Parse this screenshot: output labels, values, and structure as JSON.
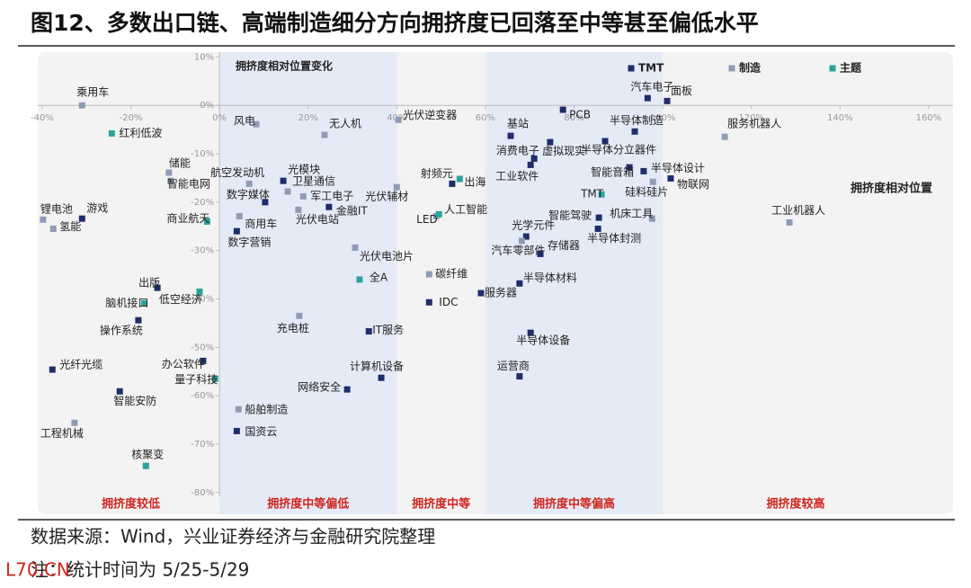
{
  "chart_data": {
    "type": "scatter",
    "title": "图12、多数出口链、高端制造细分方向拥挤度已回落至中等甚至偏低水平",
    "x_label": "拥挤度相对位置",
    "y_label": "拥挤度相对位置变化",
    "source": "数据来源：Wind，兴业证券经济与金融研究院整理",
    "note": "注：统计时间为 5/25-5/29",
    "watermark": "L70.CN",
    "legend": "top-right",
    "xlim": [
      -41,
      165.5
    ],
    "ylim": [
      -84.5,
      11
    ],
    "xticks": [
      {
        "value": -40,
        "label": "-40%"
      },
      {
        "value": -20,
        "label": "-20%"
      },
      {
        "value": 0,
        "label": "0%"
      },
      {
        "value": 20,
        "label": "20%"
      },
      {
        "value": 40,
        "label": "40%"
      },
      {
        "value": 60,
        "label": "60%"
      },
      {
        "value": 80,
        "label": "80%"
      },
      {
        "value": 100,
        "label": "100%"
      },
      {
        "value": 120,
        "label": "120%"
      },
      {
        "value": 140,
        "label": "140%"
      },
      {
        "value": 160,
        "label": "160%"
      }
    ],
    "yticks": [
      {
        "value": 10,
        "label": "10%"
      },
      {
        "value": 0,
        "label": "0%"
      },
      {
        "value": -10,
        "label": "-10%"
      },
      {
        "value": -20,
        "label": "-20%"
      },
      {
        "value": -30,
        "label": "-30%"
      },
      {
        "value": -40,
        "label": "-40%"
      },
      {
        "value": -50,
        "label": "-50%"
      },
      {
        "value": -60,
        "label": "-60%"
      },
      {
        "value": -70,
        "label": "-70%"
      },
      {
        "value": -80,
        "label": "-80%"
      }
    ],
    "regions": [
      {
        "label": "拥挤度较低",
        "from": -40,
        "to": 0,
        "shaded": false
      },
      {
        "label": "拥挤度中等偏低",
        "from": 0,
        "to": 40,
        "shaded": true
      },
      {
        "label": "拥挤度中等",
        "from": 40,
        "to": 60,
        "shaded": false
      },
      {
        "label": "拥挤度中等偏高",
        "from": 60,
        "to": 100,
        "shaded": true
      },
      {
        "label": "拥挤度较高",
        "from": 100,
        "to": 160,
        "shaded": false
      }
    ],
    "series": [
      {
        "name": "TMT",
        "color": "#1f2d6b",
        "labels": [
          "游戏",
          "出版",
          "操作系统",
          "光纤光缆",
          "办公软件",
          "智能安防",
          "光模块",
          "数字媒体",
          "金融IT",
          "数字营销",
          "IT服务",
          "计算机设备",
          "网络安全",
          "国资云",
          "射频元",
          "IDC",
          "服务器",
          "基站",
          "PCB",
          "半导体制造",
          "消费电子",
          "虚拟现实",
          "半导体分立器件",
          "工业软件",
          "智能音箱",
          "半导体设计",
          "物联网",
          "智能驾驶",
          "半导体封测",
          "光学元件",
          "存储器",
          "半导体材料",
          "半导体设备",
          "运营商",
          "汽车电子",
          "面板"
        ],
        "x": [
          -31,
          -14,
          -18.3,
          -37.7,
          -3.7,
          -22.5,
          14.4,
          10.3,
          24.7,
          3.9,
          33.7,
          36.5,
          28.8,
          3.9,
          52.5,
          47.3,
          59,
          65.7,
          77.5,
          93.7,
          74.6,
          71,
          87,
          70.2,
          92.5,
          95.7,
          101.8,
          85.6,
          85.4,
          69.2,
          72.4,
          67.7,
          70.2,
          67.7,
          96.6,
          101
        ],
        "values": [
          -23.4,
          -37.7,
          -44.4,
          -54.6,
          -52.8,
          -59.1,
          -15.6,
          -20,
          -21,
          -26,
          -46.7,
          -56.3,
          -58.7,
          -67.3,
          -16.2,
          -40.7,
          -38.8,
          -6.3,
          -0.9,
          -5.4,
          -7.6,
          -11,
          -7.4,
          -12.3,
          -12.8,
          -13.6,
          -15.1,
          -23.2,
          -25.5,
          -27.1,
          -30.7,
          -36.8,
          -47,
          -56,
          1.5,
          0.9
        ]
      },
      {
        "name": "制造",
        "color": "#8f9cb6",
        "labels": [
          "乘用车",
          "储能",
          "智能电网",
          "锂电池",
          "氢能",
          "工程机械",
          "风电",
          "无人机",
          "航空发动机",
          "卫星通信",
          "军工电子",
          "光伏辅材",
          "光伏电站",
          "商用车",
          "光伏电池片",
          "充电桩",
          "船舶制造",
          "光伏逆变器",
          "LED",
          "碳纤维",
          "硅料硅片",
          "机床工具",
          "汽车零部件",
          "服务机器人",
          "工业机器人"
        ],
        "x": [
          -31,
          -11.4,
          -11,
          -39.8,
          -37.5,
          -32.7,
          8.3,
          23.7,
          6.7,
          15.4,
          18.9,
          40,
          17.8,
          4.5,
          30.6,
          18,
          4.3,
          40.4,
          48.9,
          47.3,
          97.8,
          97.6,
          68.2,
          114,
          128.6
        ],
        "values": [
          0,
          -13.9,
          -15.6,
          -23.6,
          -25.5,
          -65.6,
          -3.9,
          -6.1,
          -16.2,
          -17.8,
          -18.8,
          -16.9,
          -21.6,
          -22.9,
          -29.4,
          -43.5,
          -62.8,
          -3,
          -22.9,
          -34.9,
          -15.8,
          -23.4,
          -28,
          -6.5,
          -24.2
        ]
      },
      {
        "name": "主题",
        "color": "#2aa39b",
        "labels": [
          "红利低波",
          "商业航天",
          "低空经济",
          "脑机接口",
          "量子科技",
          "核聚变",
          "全A",
          "出海",
          "人工智能",
          "TMT"
        ],
        "x": [
          -24.3,
          -2.8,
          -4.5,
          -17,
          -1,
          -16.6,
          31.6,
          54.2,
          49.5,
          86.2
        ],
        "values": [
          -5.8,
          -24,
          -38.5,
          -40.9,
          -56.5,
          -74.5,
          -36,
          -15.2,
          -22.5,
          -18.4
        ]
      }
    ]
  }
}
